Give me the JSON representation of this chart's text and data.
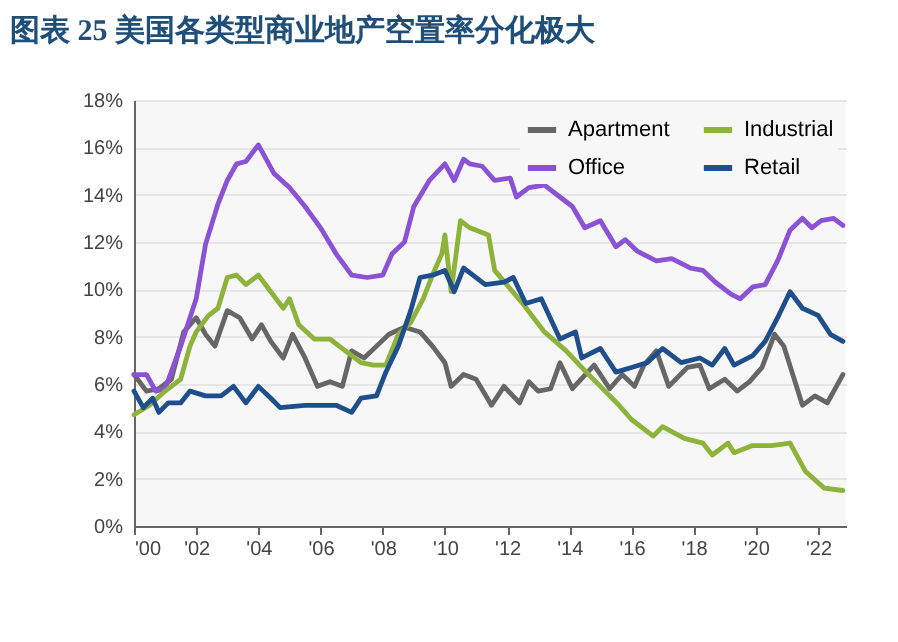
{
  "chart_data": {
    "type": "line",
    "title": "图表 25    美国各类型商业地产空置率分化极大",
    "xlim": [
      2000,
      2022.9
    ],
    "xticks": [
      {
        "value": 2000,
        "label": "'00"
      },
      {
        "value": 2002,
        "label": "'02"
      },
      {
        "value": 2004,
        "label": "'04"
      },
      {
        "value": 2006,
        "label": "'06"
      },
      {
        "value": 2008,
        "label": "'08"
      },
      {
        "value": 2010,
        "label": "'10"
      },
      {
        "value": 2012,
        "label": "'12"
      },
      {
        "value": 2014,
        "label": "'14"
      },
      {
        "value": 2016,
        "label": "'16"
      },
      {
        "value": 2018,
        "label": "'18"
      },
      {
        "value": 2020,
        "label": "'20"
      },
      {
        "value": 2022,
        "label": "'22"
      }
    ],
    "ylim": [
      0,
      18
    ],
    "yticks": [
      {
        "value": 0,
        "label": "0%"
      },
      {
        "value": 2,
        "label": "2%"
      },
      {
        "value": 4,
        "label": "4%"
      },
      {
        "value": 6,
        "label": "6%"
      },
      {
        "value": 8,
        "label": "8%"
      },
      {
        "value": 10,
        "label": "10%"
      },
      {
        "value": 12,
        "label": "12%"
      },
      {
        "value": 14,
        "label": "14%"
      },
      {
        "value": 16,
        "label": "16%"
      },
      {
        "value": 18,
        "label": "18%"
      }
    ],
    "grid": "y",
    "legend": "top right",
    "line_style": "solid",
    "series": [
      {
        "name": "Apartment",
        "color": "#666666",
        "x": [
          2000,
          2000.4,
          2000.8,
          2001.2,
          2001.6,
          2002,
          2002.3,
          2002.6,
          2003,
          2003.4,
          2003.8,
          2004.1,
          2004.4,
          2004.8,
          2005.1,
          2005.5,
          2005.9,
          2006.3,
          2006.7,
          2007,
          2007.4,
          2007.8,
          2008.2,
          2008.7,
          2009.2,
          2009.6,
          2010,
          2010.2,
          2010.6,
          2011,
          2011.5,
          2011.9,
          2012.4,
          2012.7,
          2013,
          2013.4,
          2013.7,
          2014.1,
          2014.8,
          2015.3,
          2015.7,
          2016.1,
          2016.4,
          2016.8,
          2017.2,
          2017.8,
          2018.2,
          2018.5,
          2019,
          2019.4,
          2019.8,
          2020.2,
          2020.6,
          2020.9,
          2021.5,
          2021.9,
          2022.3,
          2022.8
        ],
        "values": [
          6.4,
          5.7,
          5.8,
          6.2,
          8.2,
          8.8,
          8.1,
          7.6,
          9.1,
          8.8,
          7.9,
          8.5,
          7.8,
          7.1,
          8.1,
          7.1,
          5.9,
          6.1,
          5.9,
          7.4,
          7.1,
          7.6,
          8.1,
          8.4,
          8.2,
          7.6,
          6.9,
          5.9,
          6.4,
          6.2,
          5.1,
          5.9,
          5.2,
          6.1,
          5.7,
          5.8,
          6.9,
          5.8,
          6.8,
          5.8,
          6.4,
          5.9,
          6.8,
          7.4,
          5.9,
          6.7,
          6.8,
          5.8,
          6.2,
          5.7,
          6.1,
          6.7,
          8.1,
          7.6,
          5.1,
          5.5,
          5.2,
          6.4
        ]
      },
      {
        "name": "Office",
        "color": "#8c52d6",
        "x": [
          2000,
          2000.4,
          2000.7,
          2001,
          2001.5,
          2002,
          2002.3,
          2002.7,
          2003,
          2003.3,
          2003.6,
          2004,
          2004.5,
          2005,
          2005.5,
          2006,
          2006.5,
          2007,
          2007.5,
          2008,
          2008.3,
          2008.7,
          2009,
          2009.5,
          2010,
          2010.3,
          2010.6,
          2010.8,
          2011.2,
          2011.6,
          2012.1,
          2012.3,
          2012.7,
          2013.2,
          2013.7,
          2014.1,
          2014.5,
          2015,
          2015.5,
          2015.8,
          2016.2,
          2016.8,
          2017.3,
          2017.9,
          2018.3,
          2018.7,
          2019.2,
          2019.5,
          2019.9,
          2020.3,
          2020.7,
          2021.1,
          2021.5,
          2021.8,
          2022.1,
          2022.5,
          2022.8
        ],
        "values": [
          6.4,
          6.4,
          5.7,
          5.8,
          7.6,
          9.6,
          11.9,
          13.6,
          14.6,
          15.3,
          15.4,
          16.1,
          14.9,
          14.3,
          13.5,
          12.6,
          11.5,
          10.6,
          10.5,
          10.6,
          11.5,
          12,
          13.5,
          14.6,
          15.3,
          14.6,
          15.5,
          15.3,
          15.2,
          14.6,
          14.7,
          13.9,
          14.3,
          14.4,
          13.9,
          13.5,
          12.6,
          12.9,
          11.8,
          12.1,
          11.6,
          11.2,
          11.3,
          10.9,
          10.8,
          10.3,
          9.8,
          9.6,
          10.1,
          10.2,
          11.2,
          12.5,
          13,
          12.6,
          12.9,
          13,
          12.7
        ]
      },
      {
        "name": "Industrial",
        "color": "#8db33a",
        "x": [
          2000,
          2000.5,
          2001,
          2001.5,
          2001.8,
          2002,
          2002.4,
          2002.7,
          2003,
          2003.3,
          2003.6,
          2004,
          2004.4,
          2004.8,
          2005,
          2005.3,
          2005.8,
          2006.3,
          2006.8,
          2007.3,
          2007.7,
          2008.1,
          2008.5,
          2008.9,
          2009.3,
          2009.6,
          2009.9,
          2010,
          2010.2,
          2010.5,
          2010.8,
          2011.4,
          2011.6,
          2012.5,
          2013.2,
          2013.9,
          2014.4,
          2015,
          2015.6,
          2016,
          2016.7,
          2017,
          2017.7,
          2018.3,
          2018.6,
          2019.1,
          2019.3,
          2019.9,
          2020.5,
          2021.1,
          2021.6,
          2022.2,
          2022.8
        ],
        "values": [
          4.7,
          5.1,
          5.7,
          6.2,
          7.6,
          8.2,
          8.9,
          9.2,
          10.5,
          10.6,
          10.2,
          10.6,
          9.9,
          9.2,
          9.6,
          8.5,
          7.9,
          7.9,
          7.4,
          6.9,
          6.8,
          6.8,
          8.1,
          8.6,
          9.6,
          10.6,
          11.5,
          12.3,
          9.9,
          12.9,
          12.6,
          12.3,
          10.8,
          9.4,
          8.2,
          7.4,
          6.7,
          5.9,
          5.1,
          4.5,
          3.8,
          4.2,
          3.7,
          3.5,
          3,
          3.5,
          3.1,
          3.4,
          3.4,
          3.5,
          2.3,
          1.6,
          1.5
        ]
      },
      {
        "name": "Retail",
        "color": "#1f4e8c",
        "x": [
          2000,
          2000.3,
          2000.6,
          2000.8,
          2001.1,
          2001.5,
          2001.8,
          2002.3,
          2002.8,
          2003.2,
          2003.6,
          2004,
          2004.4,
          2004.7,
          2005.5,
          2006,
          2006.5,
          2007,
          2007.3,
          2007.8,
          2008.1,
          2008.5,
          2008.9,
          2009.2,
          2009.6,
          2010,
          2010.3,
          2010.6,
          2010.9,
          2011.3,
          2011.9,
          2012.2,
          2012.6,
          2013.1,
          2013.7,
          2014.2,
          2014.4,
          2015,
          2015.5,
          2016,
          2016.5,
          2017,
          2017.6,
          2018.2,
          2018.6,
          2019,
          2019.3,
          2019.9,
          2020.3,
          2020.7,
          2021.1,
          2021.5,
          2022,
          2022.4,
          2022.8
        ],
        "values": [
          5.7,
          5,
          5.4,
          4.8,
          5.2,
          5.2,
          5.7,
          5.5,
          5.5,
          5.9,
          5.2,
          5.9,
          5.4,
          5,
          5.1,
          5.1,
          5.1,
          4.8,
          5.4,
          5.5,
          6.5,
          7.6,
          9.1,
          10.5,
          10.6,
          10.8,
          9.9,
          10.9,
          10.6,
          10.2,
          10.3,
          10.5,
          9.4,
          9.6,
          7.9,
          8.2,
          7.1,
          7.5,
          6.5,
          6.7,
          6.9,
          7.5,
          6.9,
          7.1,
          6.8,
          7.5,
          6.8,
          7.2,
          7.8,
          8.8,
          9.9,
          9.2,
          8.9,
          8.1,
          7.8
        ]
      }
    ]
  }
}
